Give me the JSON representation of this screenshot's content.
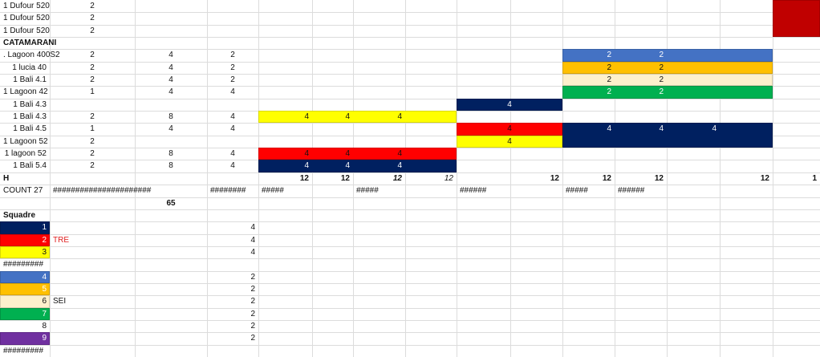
{
  "rows": [
    [
      "1 Dufour 520",
      "2"
    ],
    [
      "1 Dufour 520",
      "2"
    ],
    [
      "1 Dufour 520",
      "2"
    ],
    [
      "CATAMARANI"
    ],
    [
      ". Lagoon 400S2",
      "2",
      "4",
      "2",
      "2",
      "2"
    ],
    [
      "1 lucia 40",
      "2",
      "4",
      "2",
      "2",
      "2"
    ],
    [
      "1 Bali 4.1",
      "2",
      "4",
      "2",
      "2",
      "2"
    ],
    [
      "1 Lagoon 42",
      "1",
      "4",
      "4",
      "2",
      "2"
    ],
    [
      "1 Bali 4.3",
      "4"
    ],
    [
      "1 Bali 4.3",
      "2",
      "8",
      "4",
      "4",
      "4",
      "4"
    ],
    [
      "1 Bali 4.5",
      "1",
      "4",
      "4",
      "4",
      "4",
      "4",
      "4"
    ],
    [
      "1 Lagoon 52",
      "2",
      "4"
    ],
    [
      "1 lagoon 52",
      "2",
      "8",
      "4",
      "4",
      "4",
      "4"
    ],
    [
      "1 Bali 5.4",
      "2",
      "8",
      "4",
      "4",
      "4",
      "4"
    ],
    [
      "H",
      "12",
      "12",
      "12",
      "12",
      "12",
      "12",
      "12",
      "12",
      "1"
    ],
    [
      "COUNT 27",
      "######################",
      "########",
      "#####",
      "#####",
      "######",
      "#####",
      "######"
    ],
    [
      "65"
    ],
    [
      "Squadre"
    ],
    [
      "1",
      "4"
    ],
    [
      "2",
      "TRE",
      "4"
    ],
    [
      "3",
      "4"
    ],
    [
      "#########"
    ],
    [
      "4",
      "2"
    ],
    [
      "5",
      "2"
    ],
    [
      "6",
      "SEI",
      "2"
    ],
    [
      "7",
      "2"
    ],
    [
      "8",
      "2"
    ],
    [
      "9",
      "2"
    ],
    [
      "#########"
    ]
  ]
}
